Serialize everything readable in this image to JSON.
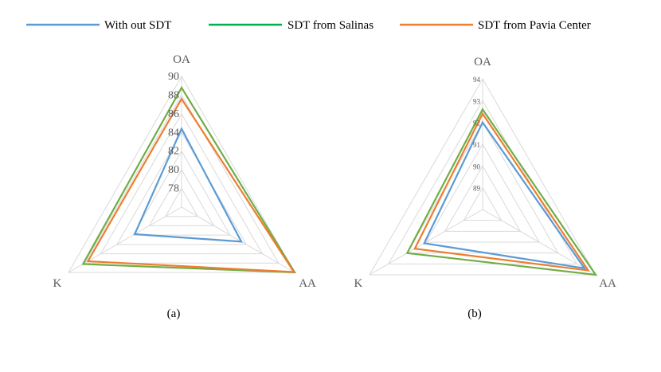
{
  "legend": [
    {
      "label": "With out SDT",
      "color": "#5b9bd5"
    },
    {
      "label": "SDT from Salinas",
      "color": "#00b050"
    },
    {
      "label": "SDT from Pavia Center",
      "color": "#ed7d31"
    }
  ],
  "chart_data": [
    {
      "type": "radar",
      "caption": "(a)",
      "axes": [
        "OA",
        "AA",
        "K"
      ],
      "range": [
        76,
        90
      ],
      "ticks": [
        "78",
        "80",
        "82",
        "84",
        "86",
        "88",
        "90"
      ],
      "legend_position": "top",
      "grid": true,
      "series": [
        {
          "name": "With out SDT",
          "color": "#5b9bd5",
          "values": [
            84.4,
            83.4,
            81.8
          ]
        },
        {
          "name": "SDT from Salinas",
          "color": "#70ad47",
          "values": [
            88.8,
            90.0,
            88.2
          ]
        },
        {
          "name": "SDT from Pavia Center",
          "color": "#ed7d31",
          "values": [
            87.6,
            89.9,
            87.6
          ]
        }
      ]
    },
    {
      "type": "radar",
      "caption": "(b)",
      "axes": [
        "OA",
        "AA",
        "K"
      ],
      "range": [
        88,
        94
      ],
      "ticks": [
        "89",
        "90",
        "91",
        "92",
        "93",
        "94"
      ],
      "legend_position": "top",
      "grid": true,
      "series": [
        {
          "name": "With out SDT",
          "color": "#5b9bd5",
          "values": [
            92.0,
            93.4,
            91.1
          ]
        },
        {
          "name": "SDT from Salinas",
          "color": "#70ad47",
          "values": [
            92.6,
            94.0,
            92.0
          ]
        },
        {
          "name": "SDT from Pavia Center",
          "color": "#ed7d31",
          "values": [
            92.4,
            93.6,
            91.6
          ]
        }
      ]
    }
  ]
}
